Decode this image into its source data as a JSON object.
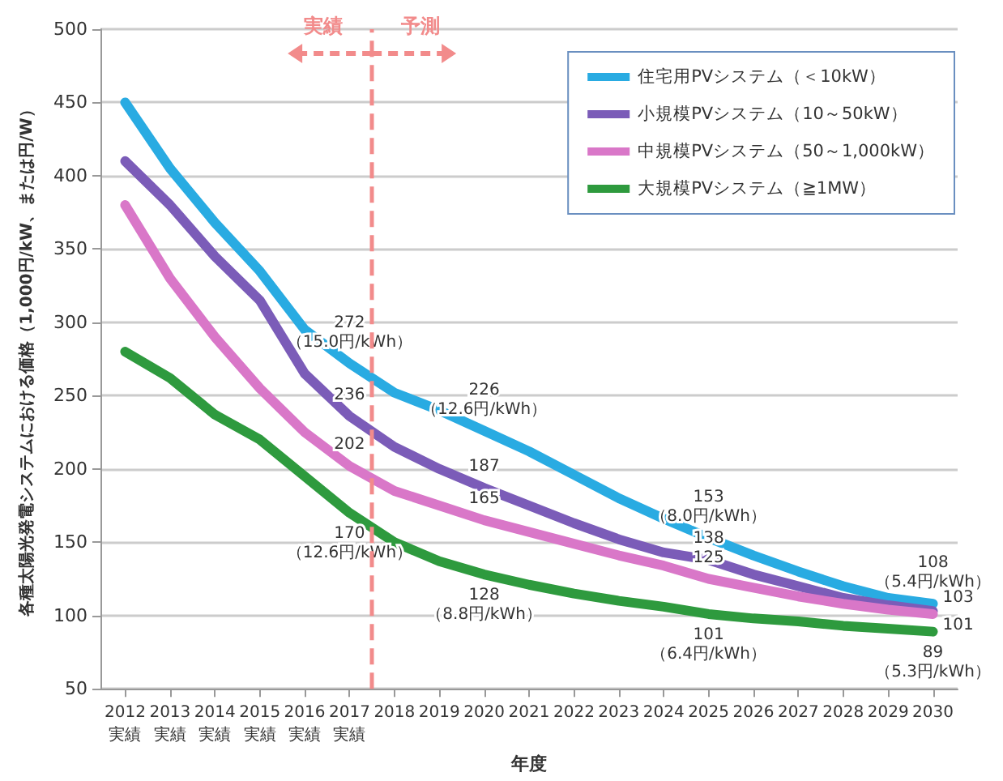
{
  "chart_data": {
    "type": "line",
    "xlabel": "年度",
    "ylabel": "各種太陽光発電システムにおける価格（1,000円/kW、または円/W）",
    "x": [
      2012,
      2013,
      2014,
      2015,
      2016,
      2017,
      2018,
      2019,
      2020,
      2021,
      2022,
      2023,
      2024,
      2025,
      2026,
      2027,
      2028,
      2029,
      2030
    ],
    "xlim": [
      2011.45,
      2030.55
    ],
    "xticks": [
      {
        "value": 2012,
        "label": "2012\n実績"
      },
      {
        "value": 2013,
        "label": "2013\n実績"
      },
      {
        "value": 2014,
        "label": "2014\n実績"
      },
      {
        "value": 2015,
        "label": "2015\n実績"
      },
      {
        "value": 2016,
        "label": "2016\n実績"
      },
      {
        "value": 2017,
        "label": "2017\n実績"
      },
      2018,
      2019,
      2020,
      2021,
      2022,
      2023,
      2024,
      2025,
      2026,
      2027,
      2028,
      2029,
      2030
    ],
    "ylim": [
      50,
      500
    ],
    "yticks": [
      50,
      100,
      150,
      200,
      250,
      300,
      350,
      400,
      450,
      500
    ],
    "grid": "y",
    "legend": "top right",
    "marker": "none",
    "line_style": "solid",
    "series": [
      {
        "name": "住宅用PVシステム（＜10kW）",
        "color": "#29abe2",
        "values": [
          450,
          405,
          368,
          335,
          295,
          272,
          252,
          240,
          226,
          212,
          196,
          180,
          166,
          153,
          141,
          130,
          120,
          112,
          108
        ],
        "value_labels": [
          null,
          null,
          null,
          null,
          null,
          "272\n（15.0円/kWh）",
          null,
          null,
          "226\n（12.6円/kWh）",
          null,
          null,
          null,
          null,
          "153\n（8.0円/kWh）",
          null,
          null,
          null,
          null,
          "108\n（5.4円/kWh）"
        ]
      },
      {
        "name": "小規模PVシステム（10～50kW）",
        "color": "#7b5cb8",
        "values": [
          410,
          380,
          345,
          315,
          265,
          236,
          215,
          200,
          187,
          175,
          163,
          152,
          143,
          138,
          128,
          120,
          112,
          107,
          103
        ],
        "value_labels": [
          null,
          null,
          null,
          null,
          null,
          "236",
          null,
          null,
          "187",
          null,
          null,
          null,
          null,
          "138",
          null,
          null,
          null,
          null,
          "103"
        ]
      },
      {
        "name": "中規模PVシステム（50～1,000kW）",
        "color": "#d977c8",
        "values": [
          380,
          330,
          290,
          255,
          225,
          202,
          185,
          175,
          165,
          157,
          149,
          141,
          134,
          125,
          119,
          113,
          108,
          104,
          101
        ],
        "value_labels": [
          null,
          null,
          null,
          null,
          null,
          "202",
          null,
          null,
          "165",
          null,
          null,
          null,
          null,
          "125",
          null,
          null,
          null,
          null,
          "101"
        ]
      },
      {
        "name": "大規模PVシステム（≧1MW）",
        "color": "#2e9a3e",
        "values": [
          280,
          262,
          237,
          220,
          195,
          170,
          150,
          137,
          128,
          121,
          115,
          110,
          106,
          101,
          98,
          96,
          93,
          91,
          89
        ],
        "value_labels": [
          null,
          null,
          null,
          null,
          null,
          "170\n（12.6円/kWh）",
          null,
          null,
          "128\n（8.8円/kWh）",
          null,
          null,
          null,
          null,
          "101\n（6.4円/kWh）",
          null,
          null,
          null,
          null,
          "89\n（5.3円/kWh）"
        ]
      }
    ],
    "ref_lines": [
      {
        "axis": "x",
        "value": 2017.5,
        "label": null,
        "color": "#f28b8b",
        "line_style": "dashed"
      }
    ],
    "annotations": [
      "実績",
      "予測"
    ]
  }
}
